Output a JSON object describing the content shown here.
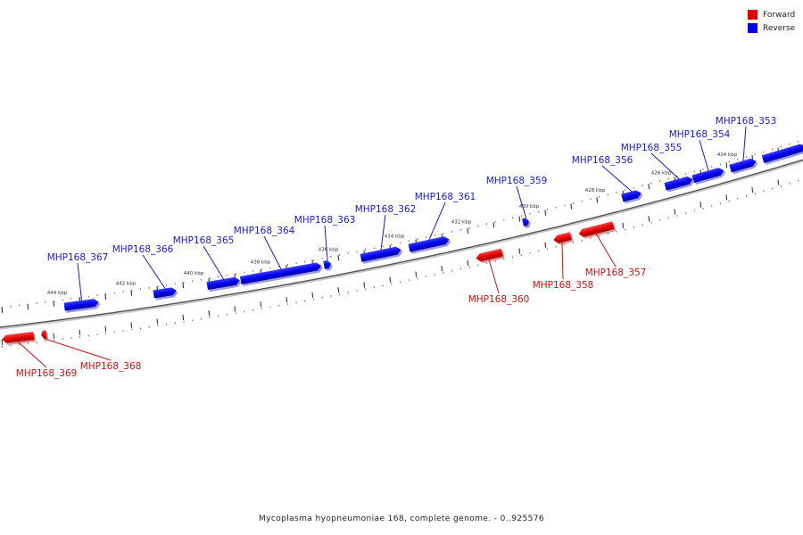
{
  "legend": {
    "forward_label": "Forward",
    "reverse_label": "Reverse",
    "forward_color": "#e00000",
    "reverse_color": "#0000ee"
  },
  "footer": {
    "caption": "Mycoplasma hyopneumoniae 168, complete genome. - 0..925576"
  },
  "scale_labels": [
    "444 kbp",
    "442 kbp",
    "440 kbp",
    "438 kbp",
    "436 kbp",
    "434 kbp",
    "432 kbp",
    "430 kbp",
    "428 kbp",
    "426 kbp",
    "424 kbp"
  ],
  "genes": [
    {
      "name": "MHP168_353",
      "strand": "reverse"
    },
    {
      "name": "MHP168_354",
      "strand": "reverse"
    },
    {
      "name": "MHP168_355",
      "strand": "reverse"
    },
    {
      "name": "MHP168_356",
      "strand": "reverse"
    },
    {
      "name": "MHP168_357",
      "strand": "forward"
    },
    {
      "name": "MHP168_358",
      "strand": "forward"
    },
    {
      "name": "MHP168_359",
      "strand": "reverse"
    },
    {
      "name": "MHP168_360",
      "strand": "forward"
    },
    {
      "name": "MHP168_361",
      "strand": "reverse"
    },
    {
      "name": "MHP168_362",
      "strand": "reverse"
    },
    {
      "name": "MHP168_363",
      "strand": "reverse"
    },
    {
      "name": "MHP168_364",
      "strand": "reverse"
    },
    {
      "name": "MHP168_365",
      "strand": "reverse"
    },
    {
      "name": "MHP168_366",
      "strand": "reverse"
    },
    {
      "name": "MHP168_367",
      "strand": "reverse"
    },
    {
      "name": "MHP168_368",
      "strand": "forward"
    },
    {
      "name": "MHP168_369",
      "strand": "forward"
    }
  ]
}
